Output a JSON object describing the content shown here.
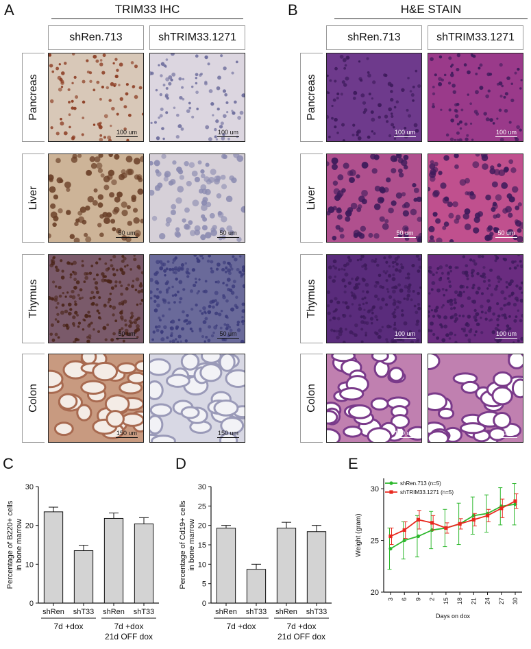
{
  "panel_a": {
    "letter": "A",
    "title": "TRIM33 IHC",
    "columns": [
      "shRen.713",
      "shTRIM33.1271"
    ],
    "rows": [
      "Pancreas",
      "Liver",
      "Thymus",
      "Colon"
    ],
    "scalebars": [
      [
        "100 um",
        "100 um"
      ],
      [
        "50 um",
        "50 um"
      ],
      [
        "50 um",
        "50 um"
      ],
      [
        "150 um",
        "150 um"
      ]
    ],
    "colors": {
      "pancreas": [
        "#d8c8b8",
        "#dcd6e0"
      ],
      "liver": [
        "#cdb498",
        "#d6d0d8"
      ],
      "thymus": [
        "#7a5a6a",
        "#6a6a9a"
      ],
      "colon": [
        "#c89a80",
        "#d8d8e4"
      ]
    }
  },
  "panel_b": {
    "letter": "B",
    "title": "H&E STAIN",
    "columns": [
      "shRen.713",
      "shTRIM33.1271"
    ],
    "rows": [
      "Pancreas",
      "Liver",
      "Thymus",
      "Colon"
    ],
    "scalebars": [
      [
        "100 um",
        "100 um"
      ],
      [
        "50 um",
        "50 um"
      ],
      [
        "100 um",
        "100 um"
      ],
      [
        "150 um",
        "150 um"
      ]
    ],
    "colors": {
      "pancreas": [
        "#6e3a8c",
        "#9a3a8a"
      ],
      "liver": [
        "#b0508e",
        "#c0508e"
      ],
      "thymus": [
        "#5a2c7c",
        "#6a2c80"
      ],
      "colon": [
        "#c080b0",
        "#c080b0"
      ]
    }
  },
  "chart_data": [
    {
      "type": "bar",
      "panel": "C",
      "ylabel": "Percentage of B220+ cells\nin bone marrow",
      "categories": [
        "shRen",
        "shT33",
        "shRen",
        "shT33"
      ],
      "values": [
        23.5,
        13.5,
        21.8,
        20.4
      ],
      "errors": [
        1.2,
        1.4,
        1.4,
        1.6
      ],
      "ylim": [
        0,
        30
      ],
      "yticks": [
        0,
        10,
        20,
        30
      ],
      "groups": [
        "7d +dox",
        "7d +dox\n21d OFF dox"
      ],
      "bar_color": "#d3d3d3"
    },
    {
      "type": "bar",
      "panel": "D",
      "ylabel": "Percentage of Cd19+ cells\nin bone marrow",
      "categories": [
        "shRen",
        "shT33",
        "shRen",
        "shT33"
      ],
      "values": [
        19.3,
        8.7,
        19.3,
        18.4
      ],
      "errors": [
        0.7,
        1.3,
        1.5,
        1.6
      ],
      "ylim": [
        0,
        30
      ],
      "yticks": [
        0,
        5,
        10,
        15,
        20,
        25,
        30
      ],
      "groups": [
        "7d +dox",
        "7d +dox\n21d OFF dox"
      ],
      "bar_color": "#d3d3d3"
    },
    {
      "type": "line",
      "panel": "E",
      "xlabel": "Days on dox",
      "ylabel": "Weight (gram)",
      "x": [
        "3",
        "6",
        "9",
        "2",
        "15",
        "18",
        "21",
        "24",
        "27",
        "30"
      ],
      "ylim": [
        20,
        31
      ],
      "yticks": [
        20,
        25,
        30
      ],
      "legend_position": "top-left",
      "series": [
        {
          "name": "shRen.713 (n=5)",
          "color": "#2db82d",
          "values": [
            24.2,
            25.0,
            25.4,
            26.0,
            26.2,
            26.6,
            27.4,
            27.6,
            28.3,
            28.5
          ],
          "errors": [
            2.0,
            1.8,
            2.0,
            1.8,
            1.8,
            2.0,
            1.8,
            1.8,
            1.8,
            2.0
          ]
        },
        {
          "name": "shTRIM33.1271 (n=5)",
          "color": "#e8281e",
          "values": [
            25.4,
            26.0,
            27.0,
            26.7,
            26.2,
            26.6,
            27.0,
            27.4,
            28.1,
            28.8
          ],
          "errors": [
            0.8,
            0.8,
            0.9,
            0.7,
            0.5,
            0.5,
            0.6,
            0.6,
            0.9,
            0.7
          ]
        }
      ]
    }
  ],
  "panel_c": {
    "letter": "C"
  },
  "panel_d": {
    "letter": "D"
  },
  "panel_e": {
    "letter": "E"
  }
}
